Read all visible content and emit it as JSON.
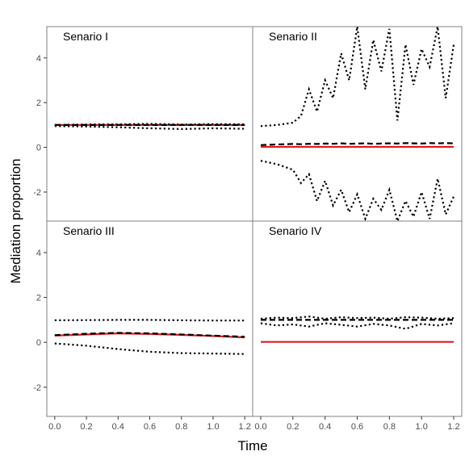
{
  "chart_data": {
    "type": "line",
    "xlabel": "Time",
    "ylabel": "Mediation proportion",
    "xlim": [
      -0.05,
      1.25
    ],
    "ylim": [
      -3.3,
      5.4
    ],
    "x_ticks": [
      0.0,
      0.2,
      0.4,
      0.6,
      0.8,
      1.0,
      1.2
    ],
    "x_tick_labels": [
      "0.0",
      "0.2",
      "0.4",
      "0.6",
      "0.8",
      "1.0",
      "1.2"
    ],
    "y_ticks": [
      -2,
      0,
      2,
      4
    ],
    "y_tick_labels": [
      "-2",
      "0",
      "2",
      "4"
    ],
    "grid": false,
    "line_colors": {
      "true_value": "#e31a1c",
      "estimate": "#000000",
      "interval": "#000000"
    },
    "panels": [
      {
        "label": "Senario I",
        "x": [
          0.0,
          0.2,
          0.4,
          0.6,
          0.8,
          1.0,
          1.2
        ],
        "series": [
          {
            "style": "solid-red",
            "values": [
              1.0,
              1.0,
              1.0,
              1.0,
              1.0,
              1.0,
              1.0
            ]
          },
          {
            "style": "dashed",
            "values": [
              1.0,
              1.0,
              1.0,
              1.0,
              1.0,
              1.0,
              1.0
            ]
          },
          {
            "style": "dotted-upper",
            "values": [
              1.0,
              1.02,
              1.03,
              1.05,
              1.02,
              1.04,
              1.03
            ]
          },
          {
            "style": "dotted-lower",
            "values": [
              0.95,
              0.93,
              0.9,
              0.85,
              0.82,
              0.85,
              0.83
            ]
          }
        ]
      },
      {
        "label": "Senario II",
        "x": [
          0.0,
          0.1,
          0.2,
          0.25,
          0.3,
          0.35,
          0.4,
          0.45,
          0.5,
          0.55,
          0.6,
          0.65,
          0.7,
          0.75,
          0.8,
          0.85,
          0.9,
          0.95,
          1.0,
          1.05,
          1.1,
          1.15,
          1.2
        ],
        "series": [
          {
            "style": "solid-red",
            "values": [
              0.02,
              0.02,
              0.02,
              0.02,
              0.02,
              0.02,
              0.02,
              0.02,
              0.02,
              0.02,
              0.02,
              0.02,
              0.02,
              0.02,
              0.02,
              0.02,
              0.02,
              0.02,
              0.02,
              0.02,
              0.02,
              0.02,
              0.02
            ]
          },
          {
            "style": "dashed",
            "values": [
              0.1,
              0.13,
              0.15,
              0.14,
              0.16,
              0.15,
              0.17,
              0.16,
              0.18,
              0.16,
              0.17,
              0.18,
              0.16,
              0.17,
              0.18,
              0.17,
              0.19,
              0.18,
              0.17,
              0.19,
              0.18,
              0.19,
              0.18
            ]
          },
          {
            "style": "dotted-upper",
            "values": [
              0.95,
              1.0,
              1.1,
              1.4,
              2.6,
              1.6,
              3.0,
              2.2,
              4.2,
              3.0,
              5.4,
              2.6,
              4.8,
              3.4,
              5.3,
              1.2,
              4.6,
              2.8,
              4.4,
              3.6,
              5.4,
              2.2,
              4.6
            ]
          },
          {
            "style": "dotted-lower",
            "values": [
              -0.6,
              -0.75,
              -1.0,
              -1.6,
              -1.2,
              -2.4,
              -1.5,
              -2.6,
              -1.9,
              -2.9,
              -2.1,
              -3.2,
              -2.3,
              -2.8,
              -1.9,
              -3.3,
              -2.4,
              -3.1,
              -2.0,
              -3.2,
              -1.4,
              -3.0,
              -2.2
            ]
          }
        ]
      },
      {
        "label": "Senario III",
        "x": [
          0.0,
          0.2,
          0.4,
          0.6,
          0.8,
          1.0,
          1.2
        ],
        "series": [
          {
            "style": "solid-red",
            "values": [
              0.3,
              0.35,
              0.4,
              0.37,
              0.33,
              0.28,
              0.22
            ]
          },
          {
            "style": "dashed",
            "values": [
              0.32,
              0.38,
              0.42,
              0.4,
              0.35,
              0.3,
              0.25
            ]
          },
          {
            "style": "dotted-upper",
            "values": [
              0.98,
              0.99,
              1.0,
              1.0,
              0.98,
              0.97,
              0.97
            ]
          },
          {
            "style": "dotted-lower",
            "values": [
              -0.05,
              -0.15,
              -0.3,
              -0.42,
              -0.48,
              -0.5,
              -0.52
            ]
          }
        ]
      },
      {
        "label": "Senario IV",
        "x": [
          0.0,
          0.1,
          0.2,
          0.3,
          0.4,
          0.5,
          0.6,
          0.7,
          0.8,
          0.9,
          1.0,
          1.1,
          1.2
        ],
        "series": [
          {
            "style": "solid-red",
            "values": [
              0.02,
              0.02,
              0.02,
              0.02,
              0.02,
              0.02,
              0.02,
              0.02,
              0.02,
              0.02,
              0.02,
              0.02,
              0.02
            ]
          },
          {
            "style": "dashed",
            "values": [
              1.0,
              1.0,
              1.0,
              1.0,
              1.0,
              1.0,
              1.0,
              1.0,
              1.0,
              1.0,
              1.0,
              1.0,
              1.0
            ]
          },
          {
            "style": "dotted-upper",
            "values": [
              1.05,
              1.1,
              1.08,
              1.15,
              1.05,
              1.12,
              1.08,
              1.1,
              1.05,
              1.12,
              1.1,
              1.05,
              1.08
            ]
          },
          {
            "style": "dotted-lower",
            "values": [
              0.85,
              0.75,
              0.8,
              0.7,
              0.85,
              0.78,
              0.7,
              0.82,
              0.75,
              0.6,
              0.82,
              0.75,
              0.85
            ]
          }
        ]
      }
    ]
  }
}
